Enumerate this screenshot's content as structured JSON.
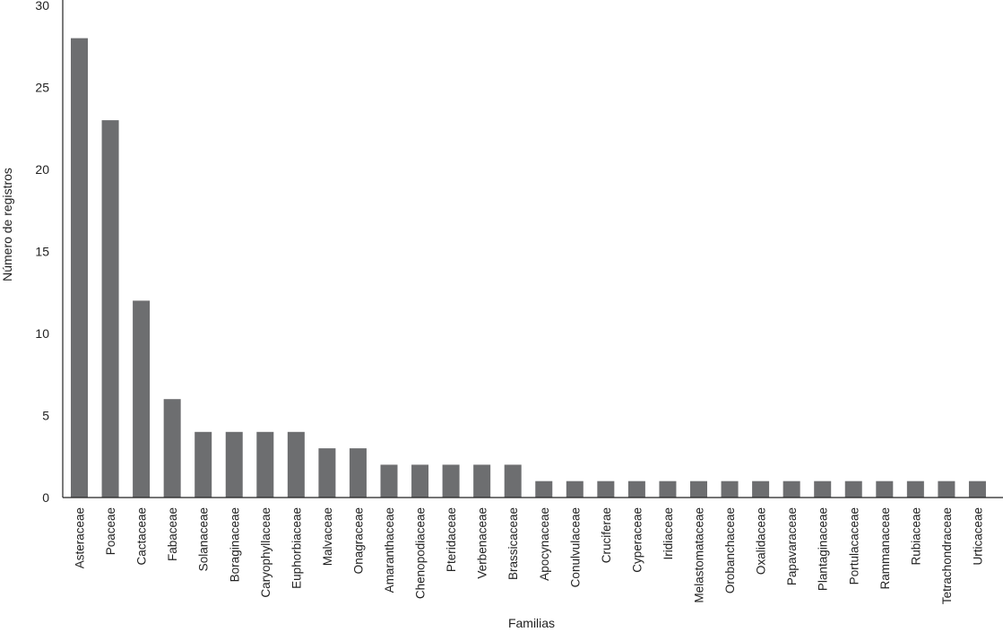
{
  "chart_data": {
    "type": "bar",
    "categories": [
      "Asteraceae",
      "Poaceae",
      "Cactaceae",
      "Fabaceae",
      "Solanaceae",
      "Boraginaceae",
      "Caryophyllaceae",
      "Euphorbiaceae",
      "Malvaceae",
      "Onagraceae",
      "Amaranthaceae",
      "Chenopodiaceae",
      "Pteridaceae",
      "Verbenaceae",
      "Brassicaceae",
      "Apocynaceae",
      "Conulvulaceae",
      "Cruciferae",
      "Cyperaceae",
      "Iridiaceae",
      "Melastomataceae",
      "Orobanchaceae",
      "Oxalidaceae",
      "Papavaraceae",
      "Plantaginaceae",
      "Portulacaceae",
      "Rammanaceae",
      "Rubiaceae",
      "Tetrachondraceae",
      "Urticaceae"
    ],
    "values": [
      28,
      23,
      12,
      6,
      4,
      4,
      4,
      4,
      3,
      3,
      2,
      2,
      2,
      2,
      2,
      1,
      1,
      1,
      1,
      1,
      1,
      1,
      1,
      1,
      1,
      1,
      1,
      1,
      1,
      1
    ],
    "title": "",
    "xlabel": "Familias",
    "ylabel": "Número de registros",
    "ylim": [
      0,
      30
    ],
    "yticks": [
      "0",
      "5",
      "10",
      "15",
      "20",
      "25",
      "30"
    ],
    "grid": false,
    "bar_color": "#6d6e70"
  }
}
